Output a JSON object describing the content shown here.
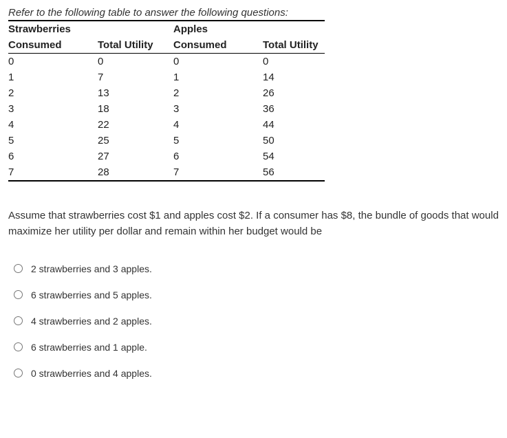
{
  "instruction": "Refer to the following table to answer the following questions:",
  "table": {
    "type": "table",
    "columns": [
      {
        "header1": "Strawberries",
        "header2": "Consumed"
      },
      {
        "header1": "",
        "header2": "Total Utility"
      },
      {
        "header1": "Apples",
        "header2": "Consumed"
      },
      {
        "header1": "",
        "header2": "Total Utility"
      }
    ],
    "rows": [
      [
        "0",
        "0",
        "0",
        "0"
      ],
      [
        "1",
        "7",
        "1",
        "14"
      ],
      [
        "2",
        "13",
        "2",
        "26"
      ],
      [
        "3",
        "18",
        "3",
        "36"
      ],
      [
        "4",
        "22",
        "4",
        "44"
      ],
      [
        "5",
        "25",
        "5",
        "50"
      ],
      [
        "6",
        "27",
        "6",
        "54"
      ],
      [
        "7",
        "28",
        "7",
        "56"
      ]
    ],
    "rule_color": "#000000",
    "header_fontweight": 600,
    "fontsize": 15
  },
  "question": "Assume that strawberries cost $1 and apples cost $2. If a consumer has $8, the bundle of goods that would maximize her utility per dollar and remain within her budget would be",
  "options": [
    "2 strawberries and 3 apples.",
    "6 strawberries and 5 apples.",
    "4 strawberries and 2 apples.",
    "6 strawberries and 1 apple.",
    "0 strawberries and 4 apples."
  ]
}
